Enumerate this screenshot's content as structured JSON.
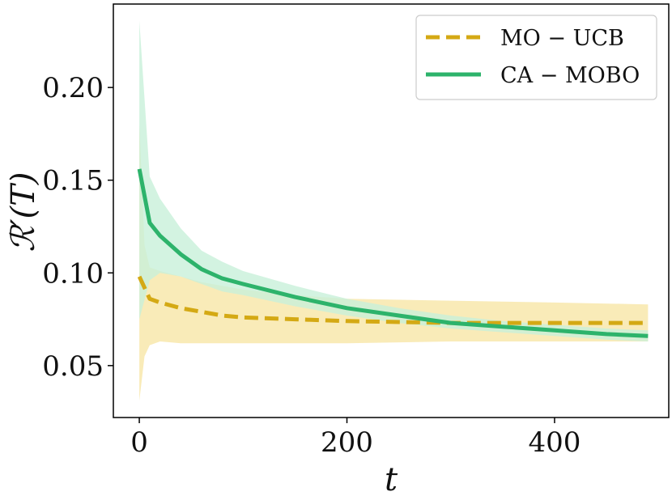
{
  "chart_data": {
    "type": "line",
    "title": "",
    "xlabel": "t",
    "ylabel": "ℛ′(T)",
    "xlim": [
      -25,
      510
    ],
    "ylim": [
      0.022,
      0.245
    ],
    "xticks": [
      0,
      200,
      400
    ],
    "xtick_labels": [
      "0",
      "200",
      "400"
    ],
    "yticks": [
      0.05,
      0.1,
      0.15,
      0.2
    ],
    "ytick_labels": [
      "0.05",
      "0.10",
      "0.15",
      "0.20"
    ],
    "grid": false,
    "legend_position": "top-right",
    "series": [
      {
        "name": "MO − UCB",
        "color": "#d4a914",
        "band_color": "#f7e6a6",
        "dashed": true,
        "x": [
          0,
          5,
          10,
          20,
          40,
          60,
          80,
          100,
          150,
          200,
          300,
          400,
          490
        ],
        "y": [
          0.098,
          0.092,
          0.086,
          0.084,
          0.081,
          0.079,
          0.077,
          0.076,
          0.075,
          0.074,
          0.073,
          0.073,
          0.073
        ],
        "lower": [
          0.031,
          0.055,
          0.061,
          0.063,
          0.062,
          0.062,
          0.062,
          0.062,
          0.062,
          0.062,
          0.063,
          0.063,
          0.063
        ],
        "upper": [
          0.18,
          0.115,
          0.103,
          0.101,
          0.098,
          0.095,
          0.093,
          0.091,
          0.088,
          0.086,
          0.085,
          0.084,
          0.083
        ]
      },
      {
        "name": "CA − MOBO",
        "color": "#2db36b",
        "band_color": "#c8f0d9",
        "dashed": false,
        "x": [
          0,
          10,
          20,
          40,
          60,
          80,
          100,
          150,
          200,
          250,
          300,
          350,
          400,
          450,
          490
        ],
        "y": [
          0.156,
          0.127,
          0.12,
          0.11,
          0.102,
          0.097,
          0.094,
          0.087,
          0.081,
          0.077,
          0.073,
          0.071,
          0.069,
          0.067,
          0.066
        ],
        "lower": [
          0.075,
          0.096,
          0.1,
          0.098,
          0.094,
          0.09,
          0.088,
          0.082,
          0.077,
          0.073,
          0.07,
          0.068,
          0.066,
          0.064,
          0.063
        ],
        "upper": [
          0.236,
          0.152,
          0.14,
          0.124,
          0.112,
          0.106,
          0.101,
          0.093,
          0.086,
          0.081,
          0.077,
          0.074,
          0.072,
          0.07,
          0.069
        ]
      }
    ]
  }
}
